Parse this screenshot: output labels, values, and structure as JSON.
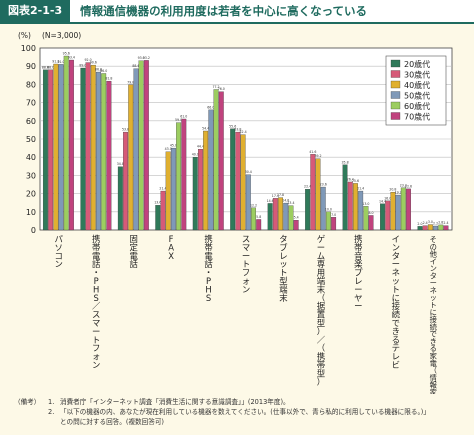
{
  "header": {
    "figure_label": "図表2-1-3",
    "title": "情報通信機器の利用用度は若者を中心に高くなっている"
  },
  "chart_data": {
    "type": "bar",
    "title": "",
    "sample_note": "(N=3,000)",
    "ylabel": "(%)",
    "ylim": [
      0,
      100
    ],
    "yticks": [
      0,
      10,
      20,
      30,
      40,
      50,
      60,
      70,
      80,
      90,
      100
    ],
    "grid": true,
    "legend_position": "top-right",
    "categories": [
      "パソコン",
      "携帯電話・PHS／スマートフォン",
      "固定電話",
      "FAX",
      "携帯電話・PHS",
      "スマートフォン",
      "タブレット型端末",
      "ゲーム専用端末（据置型）／（携帯型）",
      "携帯音楽プレーヤー",
      "インターネットに接続できるテレビ",
      "その他インターネットに接続できる家電（情報家電等）"
    ],
    "series": [
      {
        "name": "20歳代",
        "color": "#2f7a5a",
        "values": [
          88.0,
          89.0,
          34.8,
          13.6,
          40.0,
          55.6,
          14.6,
          22.4,
          35.8,
          14.4,
          2.0
        ]
      },
      {
        "name": "30歳代",
        "color": "#d65a78",
        "values": [
          88.0,
          92.0,
          53.8,
          21.4,
          44.4,
          53.8,
          17.4,
          41.6,
          26.4,
          16.0,
          2.4
        ]
      },
      {
        "name": "40歳代",
        "color": "#e0b030",
        "values": [
          91.2,
          90.6,
          79.8,
          43.0,
          54.4,
          52.4,
          17.8,
          39.2,
          25.6,
          20.8,
          3.0
        ]
      },
      {
        "name": "50歳代",
        "color": "#7f99b8",
        "values": [
          91.0,
          86.8,
          88.6,
          45.0,
          66.0,
          30.4,
          14.8,
          23.6,
          21.4,
          19.2,
          2.2
        ]
      },
      {
        "name": "60歳代",
        "color": "#9ccd60",
        "values": [
          95.6,
          86.0,
          93.0,
          59.0,
          77.2,
          12.2,
          13.4,
          10.0,
          13.0,
          23.2,
          2.8
        ]
      },
      {
        "name": "70歳代",
        "color": "#c0437e",
        "values": [
          93.4,
          81.8,
          93.2,
          61.0,
          76.0,
          5.8,
          5.4,
          7.0,
          8.0,
          22.6,
          2.4
        ]
      }
    ]
  },
  "notes": {
    "head": "（備考）",
    "items": [
      {
        "num": "1.",
        "text": "消費者庁「インターネット調査「消費生活に関する意識調査」」(2013年度)。"
      },
      {
        "num": "2.",
        "text": "「以下の機器の内、あなたが現在利用している機器を数えてください。(仕事以外で、青ら私的に利用している機器に限る。)」"
      }
    ],
    "continuation": "との問に対する回答。(複数回答可)"
  }
}
